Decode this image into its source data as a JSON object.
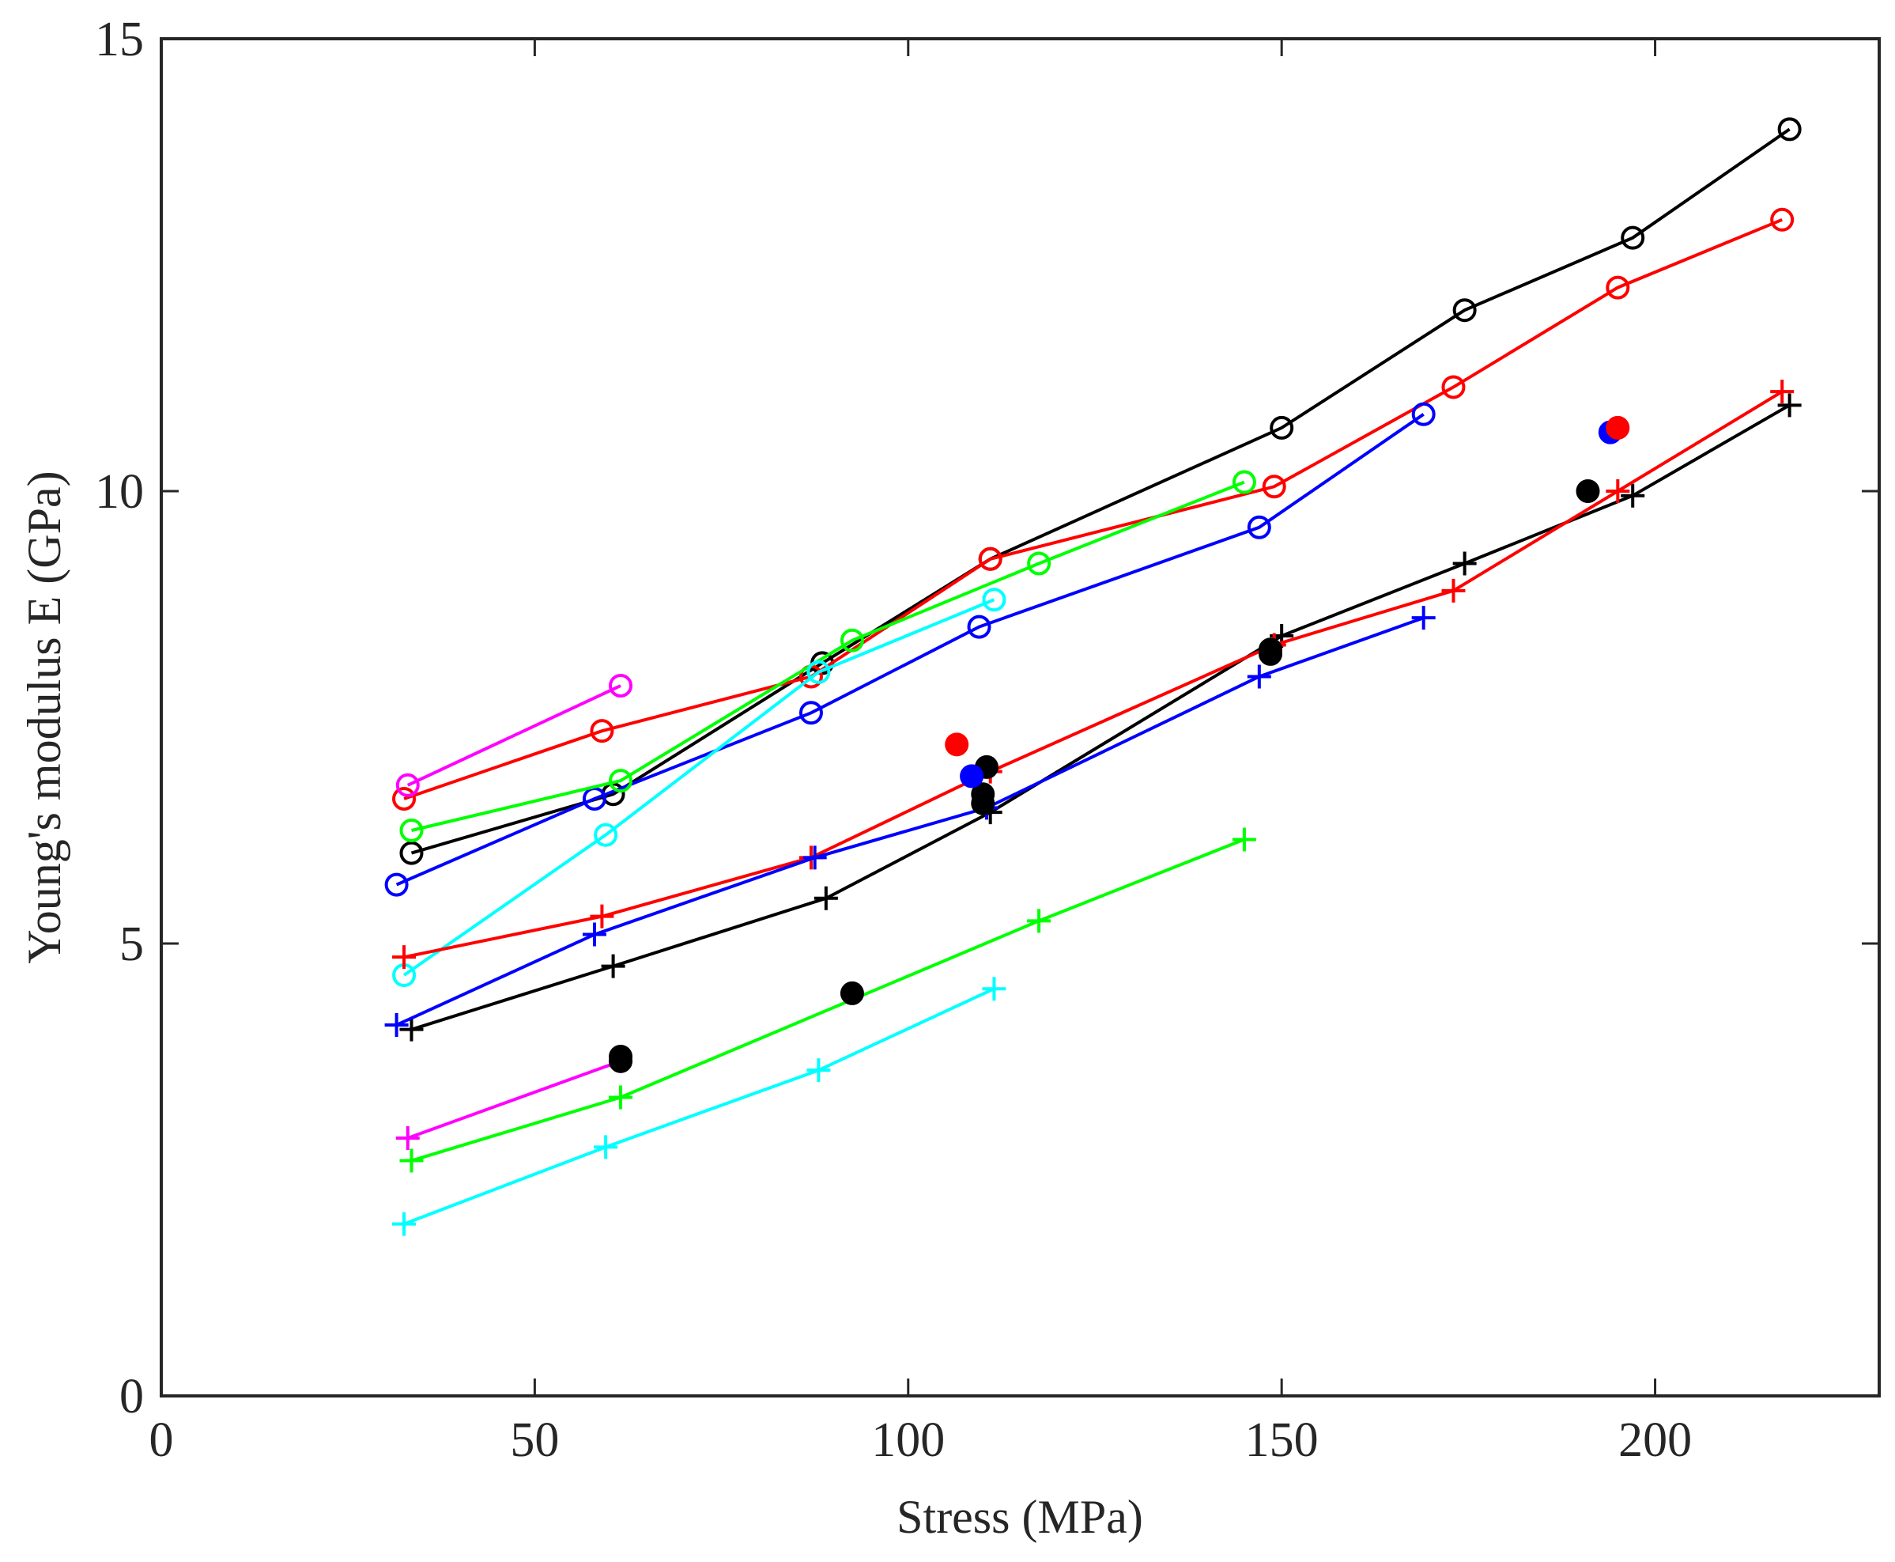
{
  "chart_data": {
    "type": "line",
    "title": "",
    "xlabel": "Stress (MPa)",
    "ylabel": "Young's modulus E (GPa)",
    "xlim": [
      0,
      230
    ],
    "ylim": [
      0,
      15
    ],
    "xticks": [
      0,
      50,
      100,
      150,
      200
    ],
    "yticks": [
      0,
      5,
      10,
      15
    ],
    "xtick_labels": [
      "0",
      "50",
      "100",
      "150",
      "200"
    ],
    "ytick_labels": [
      "0",
      "5",
      "10",
      "15"
    ],
    "grid": false,
    "legend": "none",
    "series": [
      {
        "name": "black-circle",
        "color": "#000000",
        "marker": "circle",
        "x": [
          33.5,
          60.5,
          88.5,
          111,
          150,
          174.5,
          197,
          218
        ],
        "y": [
          6.0,
          6.65,
          8.1,
          9.25,
          10.7,
          12.0,
          12.8,
          14.0
        ]
      },
      {
        "name": "red-circle",
        "color": "#ff0000",
        "marker": "circle",
        "x": [
          32.5,
          59,
          87,
          111,
          149,
          173,
          195,
          217
        ],
        "y": [
          6.6,
          7.35,
          7.95,
          9.25,
          10.05,
          11.15,
          12.25,
          13.0
        ]
      },
      {
        "name": "blue-circle",
        "color": "#0000ff",
        "marker": "circle",
        "x": [
          31.5,
          58,
          87,
          109.5,
          147,
          169
        ],
        "y": [
          5.65,
          6.6,
          7.55,
          8.5,
          9.6,
          10.85
        ]
      },
      {
        "name": "green-circle",
        "color": "#00ff00",
        "marker": "circle",
        "x": [
          33.5,
          61.5,
          92.5,
          117.5,
          145
        ],
        "y": [
          6.25,
          6.8,
          8.35,
          9.2,
          10.1
        ]
      },
      {
        "name": "cyan-circle",
        "color": "#00ffff",
        "marker": "circle",
        "x": [
          32.5,
          59.5,
          88,
          111.5
        ],
        "y": [
          4.65,
          6.2,
          8.0,
          8.8
        ]
      },
      {
        "name": "magenta-circle",
        "color": "#ff00ff",
        "marker": "circle",
        "x": [
          33,
          61.5
        ],
        "y": [
          6.75,
          7.85
        ]
      },
      {
        "name": "black-plus",
        "color": "#000000",
        "marker": "plus",
        "x": [
          33.5,
          60.5,
          89,
          111,
          150,
          174.5,
          197,
          218
        ],
        "y": [
          4.05,
          4.75,
          5.5,
          6.45,
          8.4,
          9.2,
          9.95,
          10.95
        ]
      },
      {
        "name": "red-plus",
        "color": "#ff0000",
        "marker": "plus",
        "x": [
          32.5,
          59,
          87,
          111,
          149,
          173,
          195,
          217
        ],
        "y": [
          4.85,
          5.3,
          5.95,
          6.9,
          8.3,
          8.9,
          10.0,
          11.1
        ]
      },
      {
        "name": "blue-plus",
        "color": "#0000ff",
        "marker": "plus",
        "x": [
          31.5,
          58,
          87.5,
          110.5,
          147,
          169
        ],
        "y": [
          4.1,
          5.1,
          5.95,
          6.5,
          7.95,
          8.6
        ]
      },
      {
        "name": "green-plus",
        "color": "#00ff00",
        "marker": "plus",
        "x": [
          33.5,
          61.5,
          117.5,
          145
        ],
        "y": [
          2.6,
          3.3,
          5.25,
          6.15
        ]
      },
      {
        "name": "cyan-plus",
        "color": "#00ffff",
        "marker": "plus",
        "x": [
          32.5,
          59.5,
          88,
          111.5
        ],
        "y": [
          1.9,
          2.75,
          3.6,
          4.5
        ]
      },
      {
        "name": "magenta-plus",
        "color": "#ff00ff",
        "marker": "plus",
        "x": [
          33,
          61.5
        ],
        "y": [
          2.85,
          3.7
        ]
      }
    ],
    "filled_points": [
      {
        "color": "#000000",
        "x": 61.5,
        "y": 3.75
      },
      {
        "color": "#000000",
        "x": 61.5,
        "y": 3.7
      },
      {
        "color": "#000000",
        "x": 92.5,
        "y": 4.45
      },
      {
        "color": "#000000",
        "x": 110,
        "y": 6.55
      },
      {
        "color": "#000000",
        "x": 110,
        "y": 6.65
      },
      {
        "color": "#000000",
        "x": 110.5,
        "y": 6.95
      },
      {
        "color": "#0000ff",
        "x": 108.5,
        "y": 6.85
      },
      {
        "color": "#ff0000",
        "x": 106.5,
        "y": 7.2
      },
      {
        "color": "#000000",
        "x": 148.5,
        "y": 8.2
      },
      {
        "color": "#000000",
        "x": 148.5,
        "y": 8.25
      },
      {
        "color": "#000000",
        "x": 191,
        "y": 10.0
      },
      {
        "color": "#0000ff",
        "x": 194,
        "y": 10.65
      },
      {
        "color": "#ff0000",
        "x": 195,
        "y": 10.7
      }
    ]
  }
}
